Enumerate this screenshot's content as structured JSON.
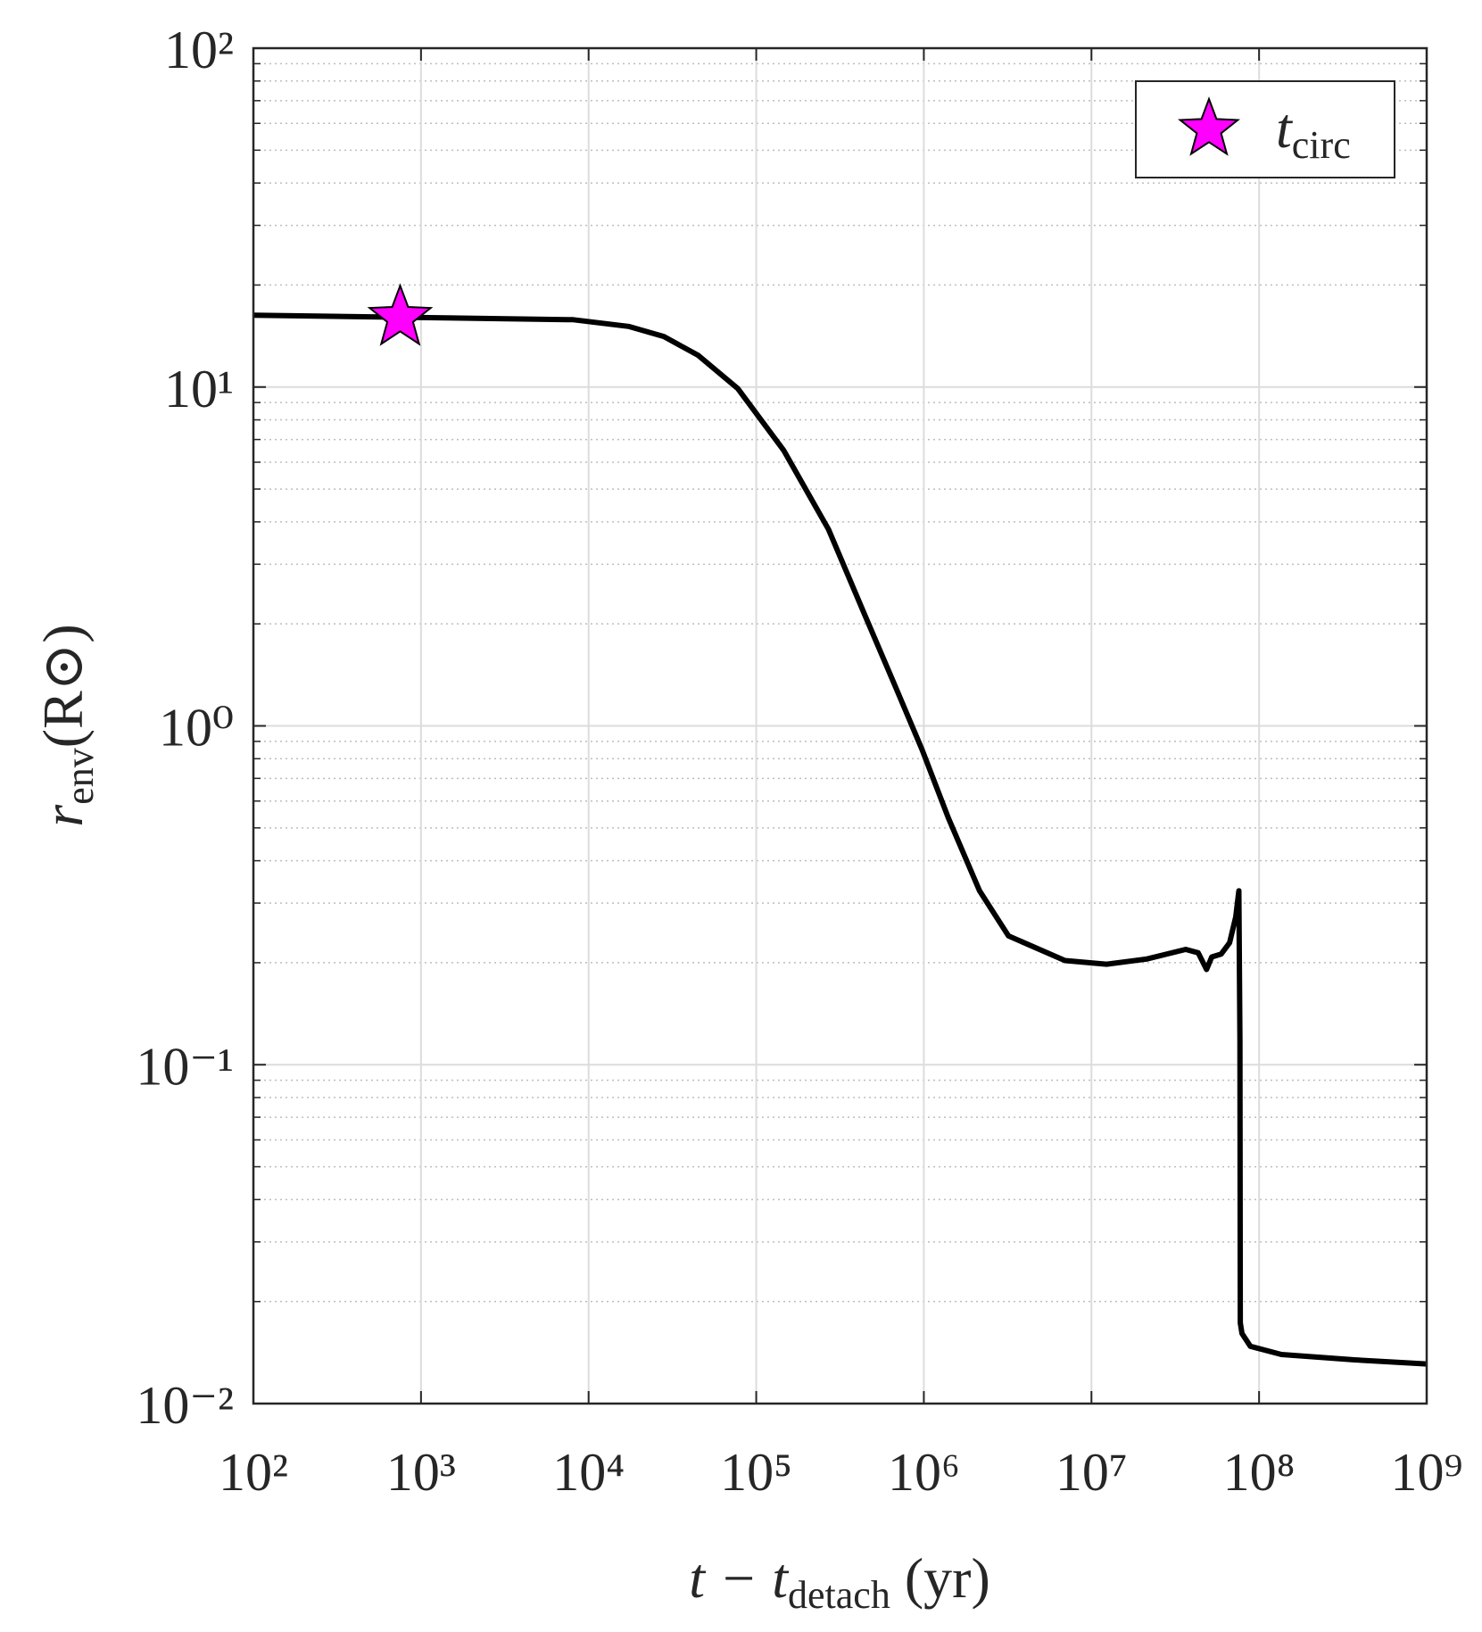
{
  "chart_data": {
    "type": "line",
    "xlabel": {
      "main": "t − t",
      "sub": "detach",
      "tail": " (yr)"
    },
    "ylabel": {
      "main": "r",
      "sub": "env",
      "tail": "(R⊙)"
    },
    "xscale": "log",
    "yscale": "log",
    "grid": true,
    "minor_grid": true,
    "legend": "upper right",
    "xlim": [
      100,
      1000000000
    ],
    "ylim": [
      0.01,
      100
    ],
    "xticks": [
      {
        "value": 100,
        "label": "10²"
      },
      {
        "value": 1000,
        "label": "10³"
      },
      {
        "value": 10000,
        "label": "10⁴"
      },
      {
        "value": 100000,
        "label": "10⁵"
      },
      {
        "value": 1000000,
        "label": "10⁶"
      },
      {
        "value": 10000000,
        "label": "10⁷"
      },
      {
        "value": 100000000,
        "label": "10⁸"
      },
      {
        "value": 1000000000,
        "label": "10⁹"
      }
    ],
    "yticks": [
      {
        "value": 0.01,
        "label": "10⁻²"
      },
      {
        "value": 0.1,
        "label": "10⁻¹"
      },
      {
        "value": 1,
        "label": "10⁰"
      },
      {
        "value": 10,
        "label": "10¹"
      },
      {
        "value": 100,
        "label": "10²"
      }
    ],
    "series": [
      {
        "color": "#000000",
        "x": [
          100,
          8100,
          17300,
          28100,
          45100,
          77600,
          146000,
          270000,
          445000,
          684000,
          977000,
          1400000,
          2150000,
          3200000,
          6950000,
          12300000,
          21200000,
          36500000,
          43300000,
          48600000,
          52200000,
          59400000,
          66700000,
          72600000,
          75800000,
          76900000,
          77300000,
          79100000,
          88700000,
          136000000,
          371000000,
          1000000000
        ],
        "values": [
          16.3,
          15.8,
          15.1,
          14.1,
          12.4,
          9.9,
          6.5,
          3.8,
          2.12,
          1.29,
          0.85,
          0.535,
          0.326,
          0.24,
          0.203,
          0.198,
          0.205,
          0.219,
          0.214,
          0.191,
          0.208,
          0.212,
          0.229,
          0.273,
          0.326,
          0.117,
          0.0173,
          0.0161,
          0.01476,
          0.01396,
          0.01346,
          0.01309
        ]
      },
      {
        "type": "scatter",
        "marker": "star",
        "name": {
          "main": "t",
          "sub": "circ"
        },
        "color": "#ff00ff",
        "x": [
          751
        ],
        "values": [
          16.0
        ]
      }
    ]
  }
}
